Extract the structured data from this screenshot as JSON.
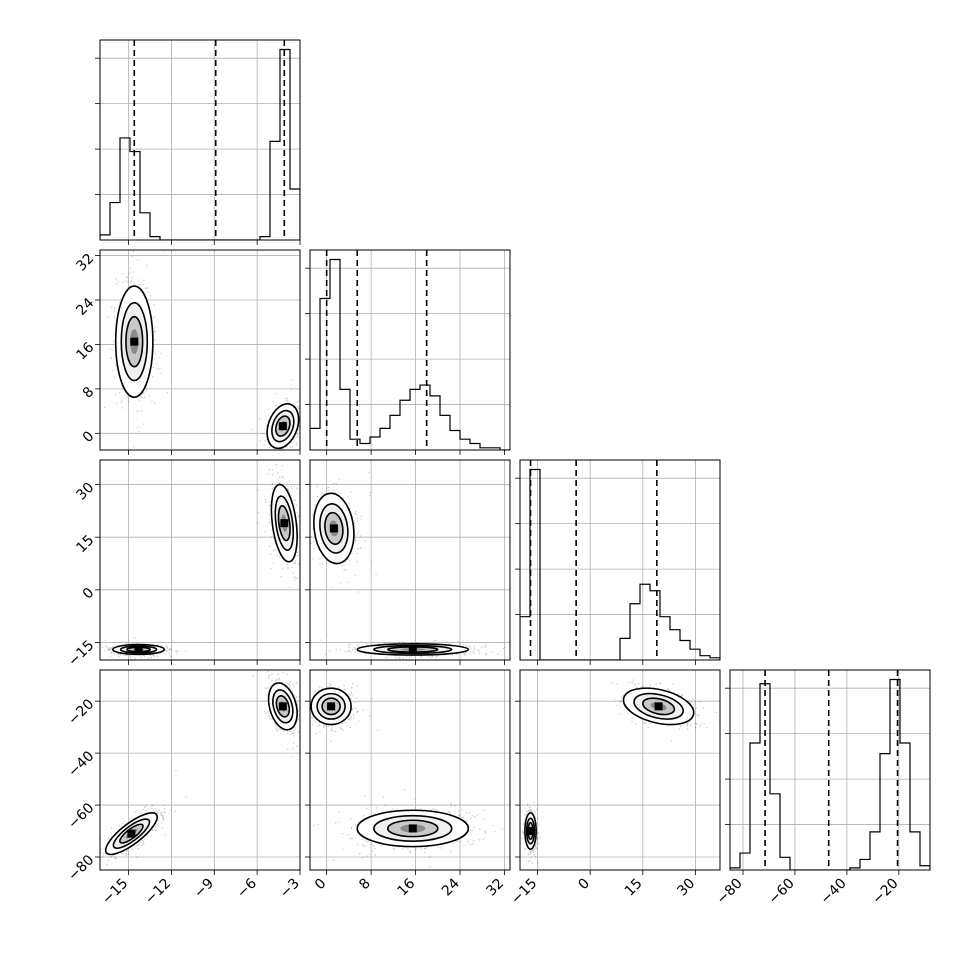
{
  "chart_data": {
    "type": "corner",
    "parameters": [
      {
        "range": [
          -17,
          -3
        ],
        "ticks": [
          -15,
          -12,
          -9,
          -6,
          -3
        ],
        "tick_labels": [
          "−15",
          "−12",
          "−9",
          "−6",
          "−3"
        ],
        "quantiles": [
          -14.6,
          -8.9,
          -4.1
        ]
      },
      {
        "range": [
          -3,
          33
        ],
        "ticks": [
          0,
          8,
          16,
          24,
          32
        ],
        "tick_labels": [
          "0",
          "8",
          "16",
          "24",
          "32"
        ],
        "quantiles": [
          0.0,
          5.5,
          18.0
        ]
      },
      {
        "range": [
          -20,
          37
        ],
        "ticks": [
          -15,
          0,
          15,
          30
        ],
        "tick_labels": [
          "−15",
          "0",
          "15",
          "30"
        ],
        "quantiles": [
          -17.0,
          -4.0,
          19.0
        ]
      },
      {
        "range": [
          -85,
          -8
        ],
        "ticks": [
          -80,
          -60,
          -40,
          -20
        ],
        "tick_labels": [
          "−80",
          "−60",
          "−40",
          "−20"
        ],
        "quantiles": [
          -71.5,
          -47.0,
          -20.5
        ]
      }
    ],
    "histograms": [
      {
        "edges": [
          -17,
          -16.3,
          -15.6,
          -14.9,
          -14.2,
          -13.5,
          -12.8,
          -12.1,
          -11.4,
          -10.7,
          -10.0,
          -9.3,
          -8.6,
          -7.9,
          -7.2,
          -6.5,
          -5.8,
          -5.1,
          -4.4,
          -3.7,
          -3.0
        ],
        "counts": [
          3,
          22,
          60,
          52,
          16,
          2,
          0,
          0,
          0,
          0,
          0,
          0,
          0,
          0,
          0,
          0,
          2,
          58,
          112,
          30
        ]
      },
      {
        "edges": [
          -3,
          -1.2,
          0.6,
          2.4,
          4.2,
          6.0,
          7.8,
          9.6,
          11.4,
          13.2,
          15.0,
          16.8,
          18.6,
          20.4,
          22.2,
          24.0,
          25.8,
          27.6,
          29.4,
          31.2,
          33.0
        ],
        "counts": [
          10,
          70,
          88,
          28,
          5,
          3,
          6,
          10,
          16,
          23,
          28,
          30,
          25,
          16,
          9,
          5,
          3,
          1,
          1,
          0
        ]
      },
      {
        "edges": [
          -20,
          -17.15,
          -14.3,
          -11.45,
          -8.6,
          -5.75,
          -2.9,
          -0.05,
          2.8,
          5.65,
          8.5,
          11.35,
          14.2,
          17.05,
          19.9,
          22.75,
          25.6,
          28.45,
          31.3,
          34.15,
          37.0
        ],
        "counts": [
          20,
          88,
          0,
          0,
          0,
          0,
          0,
          0,
          0,
          0,
          10,
          26,
          35,
          32,
          20,
          14,
          9,
          5,
          2,
          1
        ]
      },
      {
        "edges": [
          -85,
          -81.15,
          -77.3,
          -73.45,
          -69.6,
          -65.75,
          -61.9,
          -58.05,
          -54.2,
          -50.35,
          -46.5,
          -42.65,
          -38.8,
          -34.95,
          -31.1,
          -27.25,
          -23.4,
          -19.55,
          -15.7,
          -11.85,
          -8.0
        ],
        "counts": [
          1,
          8,
          60,
          88,
          36,
          6,
          0,
          0,
          0,
          0,
          0,
          0,
          1,
          5,
          18,
          55,
          90,
          60,
          18,
          2
        ]
      }
    ],
    "pairs": [
      {
        "x": 0,
        "y": 1,
        "blobs": [
          {
            "cx": -14.6,
            "cy": 16.5,
            "sx": 0.65,
            "sy": 5.0,
            "r": 0,
            "w": 0.5
          },
          {
            "cx": -4.2,
            "cy": 1.3,
            "sx": 0.55,
            "sy": 2.0,
            "r": 0.3,
            "w": 0.5
          }
        ]
      },
      {
        "x": 0,
        "y": 2,
        "blobs": [
          {
            "cx": -14.3,
            "cy": -17.0,
            "sx": 0.9,
            "sy": 0.7,
            "r": 0,
            "w": 0.5
          },
          {
            "cx": -4.1,
            "cy": 19.0,
            "sx": 0.45,
            "sy": 5.5,
            "r": -0.35,
            "w": 0.5
          }
        ]
      },
      {
        "x": 0,
        "y": 3,
        "blobs": [
          {
            "cx": -14.8,
            "cy": -71.0,
            "sx": 0.9,
            "sy": 4.0,
            "r": 0.8,
            "w": 0.5
          },
          {
            "cx": -4.2,
            "cy": -22.0,
            "sx": 0.5,
            "sy": 4.5,
            "r": -0.3,
            "w": 0.5
          }
        ]
      },
      {
        "x": 1,
        "y": 2,
        "blobs": [
          {
            "cx": 1.3,
            "cy": 17.5,
            "sx": 1.8,
            "sy": 5.0,
            "r": -0.15,
            "w": 0.5
          },
          {
            "cx": 15.5,
            "cy": -17.0,
            "sx": 5.0,
            "sy": 0.8,
            "r": 0,
            "w": 0.5
          }
        ]
      },
      {
        "x": 1,
        "y": 3,
        "blobs": [
          {
            "cx": 0.8,
            "cy": -22.0,
            "sx": 1.8,
            "sy": 3.5,
            "r": 0,
            "w": 0.5
          },
          {
            "cx": 15.5,
            "cy": -69.0,
            "sx": 5.0,
            "sy": 3.5,
            "r": 0,
            "w": 0.5
          }
        ]
      },
      {
        "x": 2,
        "y": 3,
        "blobs": [
          {
            "cx": -17.0,
            "cy": -70.0,
            "sx": 0.8,
            "sy": 3.5,
            "r": 0,
            "w": 0.5
          },
          {
            "cx": 19.5,
            "cy": -22.0,
            "sx": 5.0,
            "sy": 3.5,
            "r": -0.35,
            "w": 0.5
          }
        ]
      }
    ]
  }
}
